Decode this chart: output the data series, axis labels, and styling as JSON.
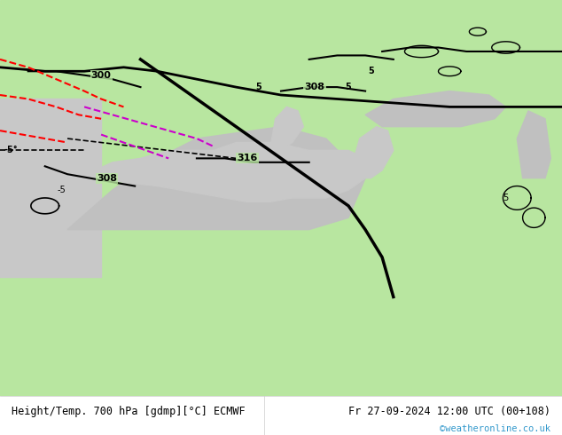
{
  "title_left": "Height/Temp. 700 hPa [gdmp][°C] ECMWF",
  "title_right": "Fr 27-09-2024 12:00 UTC (00+108)",
  "credit": "©weatheronline.co.uk",
  "bg_color_land": "#b8e6a0",
  "bg_color_sea": "#d0d0d0",
  "coast_color": "#aaaaaa",
  "text_color": "#000000",
  "credit_color": "#3399cc",
  "footer_bg": "#ffffff",
  "fig_width": 6.34,
  "fig_height": 4.9,
  "dpi": 100
}
